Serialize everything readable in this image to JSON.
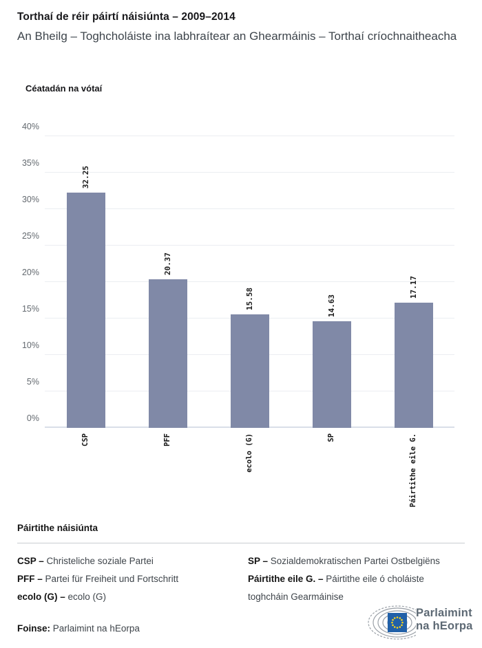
{
  "header": {
    "title": "Torthaí de réir páirtí náisiúnta – 2009–2014",
    "subtitle": "An Bheilg – Toghcholáiste ina labhraítear an Ghearmáinis – Torthaí críochnaitheacha"
  },
  "chart_data": {
    "type": "bar",
    "title": "Céatadán na vótaí",
    "categories": [
      "CSP",
      "PFF",
      "ecolo (G)",
      "SP",
      "Páirtithe eile G."
    ],
    "values": [
      32.25,
      20.37,
      15.58,
      14.63,
      17.17
    ],
    "value_labels": [
      "32.25",
      "20.37",
      "15.58",
      "14.63",
      "17.17"
    ],
    "xlabel": "",
    "ylabel": "Céatadán na vótaí",
    "ylim": [
      0,
      40
    ],
    "ytick_step": 5,
    "ytick_suffix": "%",
    "grid": true,
    "legend_position": "none",
    "bar_color": "#8089A7"
  },
  "legend": {
    "heading": "Páirtithe náisiúnta",
    "columns": [
      [
        {
          "term": "CSP –",
          "definition": "Christeliche soziale Partei"
        },
        {
          "term": "PFF –",
          "definition": "Partei für Freiheit und Fortschritt"
        },
        {
          "term": "ecolo (G) –",
          "definition": "ecolo (G)"
        }
      ],
      [
        {
          "term": "SP –",
          "definition": "Sozialdemokratischen Partei Ostbelgiëns"
        },
        {
          "term": "Páirtithe eile G. –",
          "definition": "Páirtithe eile ó choláiste toghcháin Gearmáinise"
        }
      ]
    ]
  },
  "footer": {
    "source_label": "Foinse:",
    "source_value": "Parlaimint na hEorpa",
    "logo_line1": "Parlaimint",
    "logo_line2": "na hEorpa"
  },
  "colors": {
    "bar": "#8089A7",
    "gridline": "#ebedf1",
    "baseline": "#d9dee8",
    "eu_flag_blue": "#2160A8",
    "star_yellow": "#FFD617",
    "logo_gray": "#5d6974"
  }
}
